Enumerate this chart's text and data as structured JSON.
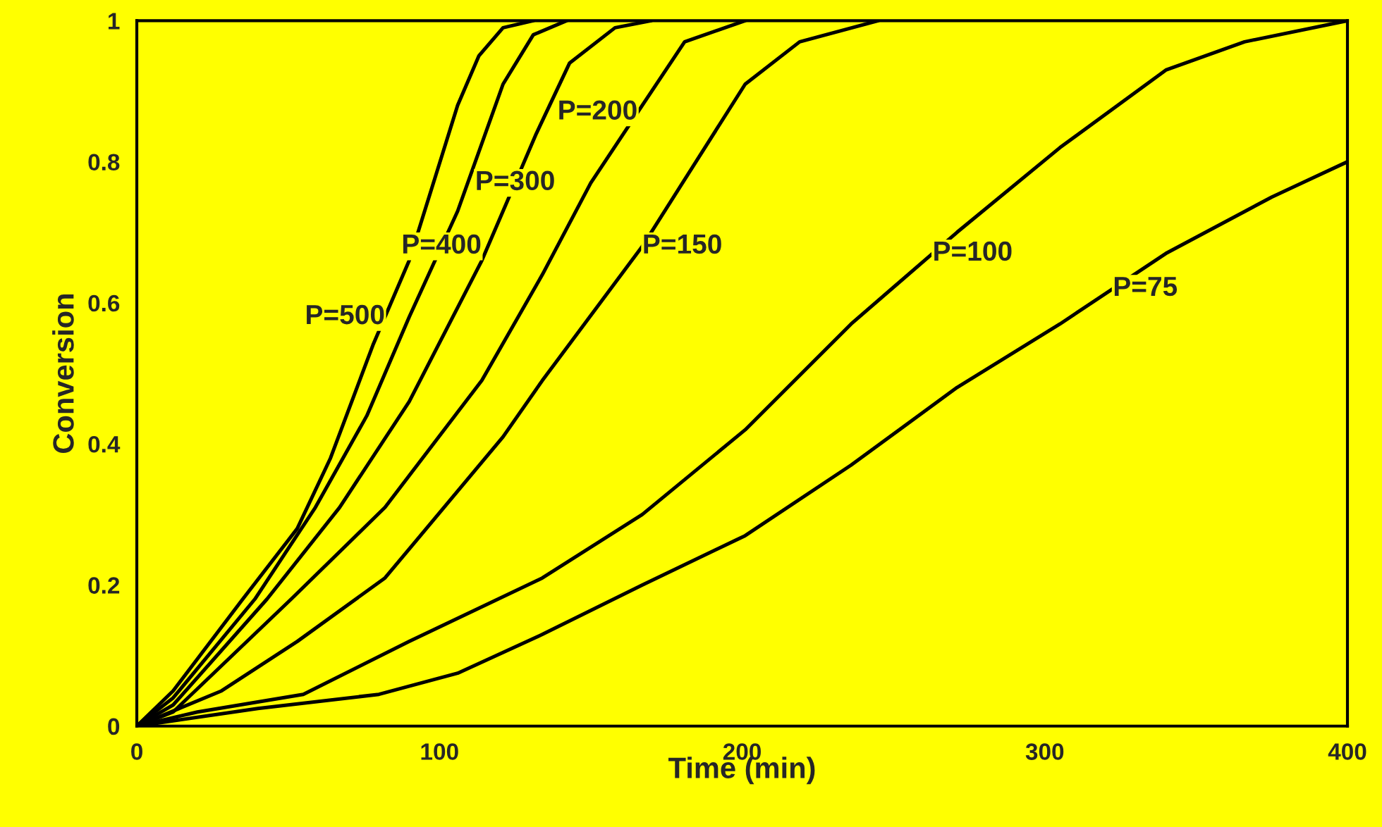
{
  "chart_data": {
    "type": "line",
    "xlabel": "Time (min)",
    "ylabel": "Conversion",
    "xlim": [
      0,
      400
    ],
    "xticks": [
      0,
      100,
      200,
      300,
      400
    ],
    "ylim": [
      0,
      1
    ],
    "yticks": [
      0,
      {
        "value": 0.2,
        "label": "0.2"
      },
      {
        "value": 0.4,
        "label": "0.4"
      },
      {
        "value": 0.6,
        "label": "0.6"
      },
      {
        "value": 0.8,
        "label": "0.8"
      },
      1
    ],
    "grid": false,
    "legend": false,
    "marker": "none",
    "line_style": "solid",
    "series": [
      {
        "name": "P=500",
        "color": "#000000",
        "x": [
          0,
          12,
          35,
          53,
          64,
          78,
          90,
          106,
          113,
          121,
          131
        ],
        "values": [
          0,
          0.05,
          0.18,
          0.28,
          0.38,
          0.54,
          0.66,
          0.88,
          0.95,
          0.99,
          1.0
        ]
      },
      {
        "name": "P=400",
        "color": "#000000",
        "x": [
          0,
          12,
          39,
          59,
          76,
          90,
          106,
          121,
          131,
          142
        ],
        "values": [
          0,
          0.04,
          0.18,
          0.31,
          0.44,
          0.58,
          0.73,
          0.91,
          0.98,
          1.0
        ]
      },
      {
        "name": "P=300",
        "color": "#000000",
        "x": [
          0,
          12,
          43,
          67,
          90,
          114,
          132,
          143,
          158,
          170
        ],
        "values": [
          0,
          0.03,
          0.18,
          0.31,
          0.46,
          0.66,
          0.84,
          0.94,
          0.99,
          1.0
        ]
      },
      {
        "name": "P=200",
        "color": "#000000",
        "x": [
          0,
          12,
          51,
          82,
          114,
          134,
          150,
          167,
          181,
          201
        ],
        "values": [
          0,
          0.02,
          0.18,
          0.31,
          0.49,
          0.64,
          0.77,
          0.88,
          0.97,
          1.0
        ]
      },
      {
        "name": "P=150",
        "color": "#000000",
        "x": [
          0,
          28,
          53,
          82,
          121,
          134,
          167,
          201,
          219,
          245
        ],
        "values": [
          0,
          0.05,
          0.12,
          0.21,
          0.41,
          0.49,
          0.68,
          0.91,
          0.97,
          1.0
        ]
      },
      {
        "name": "P=100",
        "color": "#000000",
        "x": [
          0,
          20,
          55,
          90,
          134,
          167,
          201,
          236,
          271,
          305,
          340,
          366,
          400
        ],
        "values": [
          0,
          0.02,
          0.045,
          0.12,
          0.21,
          0.3,
          0.42,
          0.57,
          0.7,
          0.82,
          0.93,
          0.97,
          1.0
        ]
      },
      {
        "name": "P=75",
        "color": "#000000",
        "x": [
          0,
          40,
          80,
          106,
          134,
          167,
          201,
          236,
          271,
          305,
          340,
          375,
          400
        ],
        "values": [
          0,
          0.025,
          0.045,
          0.075,
          0.13,
          0.2,
          0.27,
          0.37,
          0.48,
          0.57,
          0.67,
          0.75,
          0.8
        ]
      }
    ]
  }
}
